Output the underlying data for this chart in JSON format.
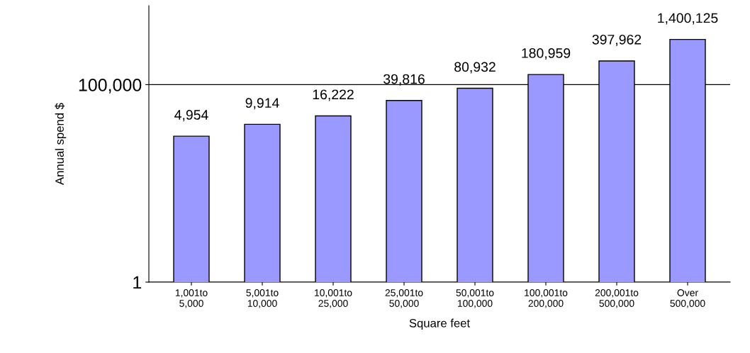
{
  "chart_data": {
    "type": "bar",
    "xlabel": "Square feet",
    "ylabel": "Annual spend $",
    "categories": [
      "1,001to\n5,000",
      "5,001to\n10,000",
      "10,001to\n25,000",
      "25,001to\n50,000",
      "50,001to\n100,000",
      "100,001to\n200,000",
      "200,001to\n500,000",
      "Over\n500,000"
    ],
    "values": [
      4954,
      9914,
      16222,
      39816,
      80932,
      180959,
      397962,
      1400125
    ],
    "color": "#9999ff",
    "log": true,
    "ylim": [
      1,
      10000000
    ],
    "yticks": [
      1,
      {
        "value": 100000,
        "label": "100,000"
      }
    ],
    "value_labels": [
      "4,954",
      "9,914",
      "16,222",
      "39,816",
      "80,932",
      "180,959",
      "397,962",
      "1,400,125"
    ],
    "grid": "y"
  }
}
